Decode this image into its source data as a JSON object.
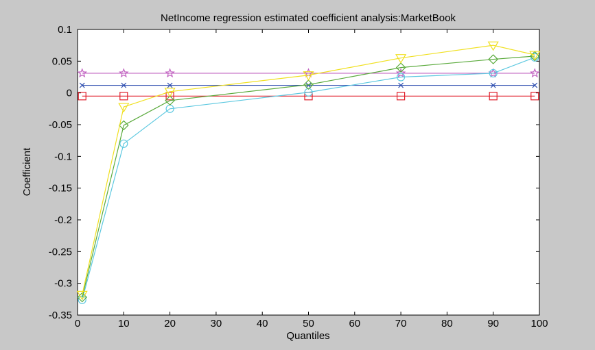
{
  "chart_data": {
    "type": "line",
    "title": "NetIncome regression estimated coefficient analysis:MarketBook",
    "xlabel": "Quantiles",
    "ylabel": "Coefficient",
    "xlim": [
      0,
      100
    ],
    "ylim": [
      -0.35,
      0.1
    ],
    "xticks": [
      0,
      10,
      20,
      30,
      40,
      50,
      60,
      70,
      80,
      90,
      100
    ],
    "xtick_labels": [
      "0",
      "10",
      "20",
      "30",
      "40",
      "50",
      "60",
      "70",
      "80",
      "90",
      "100"
    ],
    "yticks": [
      0.1,
      0.05,
      0,
      -0.05,
      -0.1,
      -0.15,
      -0.2,
      -0.25,
      -0.3,
      -0.35
    ],
    "ytick_labels": [
      "0.1",
      "0.05",
      "0",
      "-0.05",
      "-0.1",
      "-0.15",
      "-0.2",
      "-0.25",
      "-0.3",
      "-0.35"
    ],
    "grid": false,
    "legend": "none",
    "x": [
      1,
      10,
      20,
      50,
      70,
      90,
      99
    ],
    "series": [
      {
        "color": "#3050b0",
        "marker": "x",
        "values": [
          0.012,
          0.012,
          0.012,
          0.012,
          0.012,
          0.012,
          0.012
        ]
      },
      {
        "color": "#e01e2a",
        "marker": "square",
        "values": [
          -0.005,
          -0.005,
          -0.005,
          -0.005,
          -0.005,
          -0.005,
          -0.005
        ]
      },
      {
        "color": "#c060c0",
        "marker": "star",
        "values": [
          0.031,
          0.031,
          0.031,
          0.031,
          0.031,
          0.031,
          0.031
        ]
      },
      {
        "color": "#5cc8e0",
        "marker": "circle",
        "values": [
          -0.326,
          -0.08,
          -0.025,
          0.001,
          0.025,
          0.031,
          0.056
        ]
      },
      {
        "color": "#5aaa3c",
        "marker": "diamond",
        "values": [
          -0.322,
          -0.051,
          -0.012,
          0.013,
          0.04,
          0.053,
          0.058
        ]
      },
      {
        "color": "#f0e020",
        "marker": "triangle",
        "values": [
          -0.318,
          -0.022,
          0.002,
          0.028,
          0.055,
          0.075,
          0.06
        ]
      }
    ]
  }
}
